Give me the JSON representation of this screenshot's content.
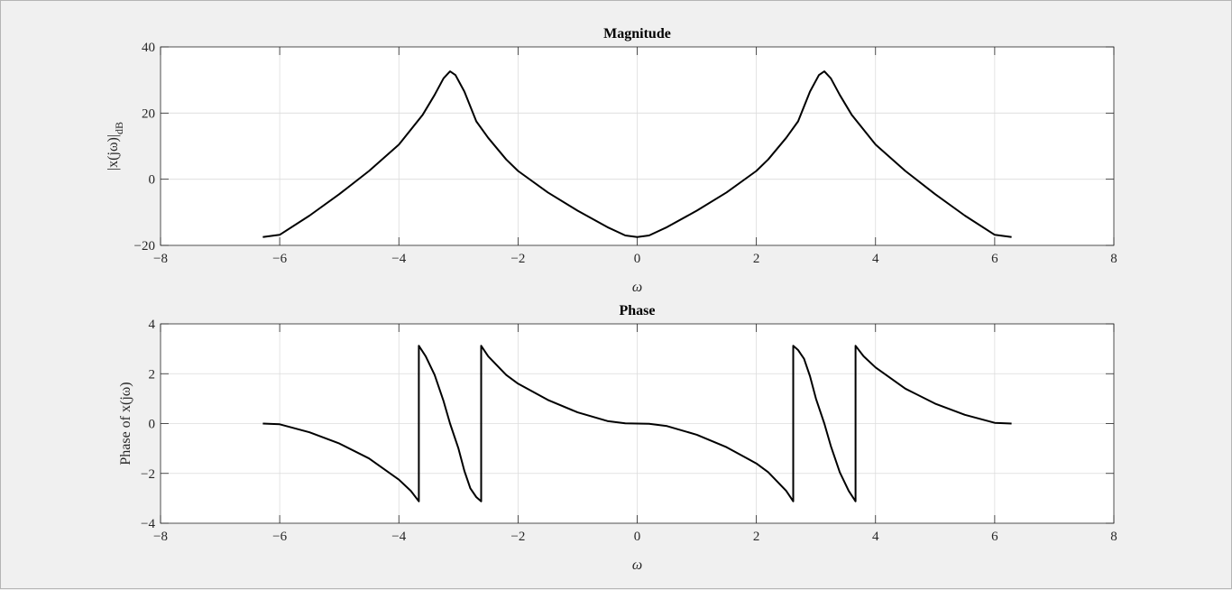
{
  "chart_data": [
    {
      "type": "line",
      "title": "Magnitude",
      "xlabel": "ω",
      "ylabel": "|x(jω)|dB",
      "xlim": [
        -8,
        8
      ],
      "ylim": [
        -20,
        40
      ],
      "xticks": [
        -8,
        -6,
        -4,
        -2,
        0,
        2,
        4,
        6,
        8
      ],
      "yticks": [
        -20,
        0,
        20,
        40
      ],
      "grid": true,
      "line_color": "#000000",
      "x": [
        -6.283,
        -6.0,
        -5.5,
        -5.0,
        -4.5,
        -4.0,
        -3.6,
        -3.4,
        -3.25,
        -3.1416,
        -3.05,
        -2.9,
        -2.7,
        -2.5,
        -2.2,
        -2.0,
        -1.5,
        -1.0,
        -0.5,
        -0.2,
        0,
        0.2,
        0.5,
        1.0,
        1.5,
        2.0,
        2.2,
        2.5,
        2.7,
        2.9,
        3.05,
        3.1416,
        3.25,
        3.4,
        3.6,
        4.0,
        4.5,
        5.0,
        5.5,
        6.0,
        6.283
      ],
      "y": [
        -17.5,
        -16.8,
        -11.0,
        -4.5,
        2.5,
        10.5,
        19.5,
        25.5,
        30.5,
        32.6,
        31.5,
        26.5,
        17.5,
        12.5,
        6.0,
        2.5,
        -4.0,
        -9.5,
        -14.5,
        -17.0,
        -17.5,
        -17.0,
        -14.5,
        -9.5,
        -4.0,
        2.5,
        6.0,
        12.5,
        17.5,
        26.5,
        31.5,
        32.6,
        30.5,
        25.5,
        19.5,
        10.5,
        2.5,
        -4.5,
        -11.0,
        -16.8,
        -17.5
      ]
    },
    {
      "type": "line",
      "title": "Phase",
      "xlabel": "ω",
      "ylabel": "Phase of x(jω)",
      "xlim": [
        -8,
        8
      ],
      "ylim": [
        -4,
        4
      ],
      "xticks": [
        -8,
        -6,
        -4,
        -2,
        0,
        2,
        4,
        6,
        8
      ],
      "yticks": [
        -4,
        -2,
        0,
        2,
        4
      ],
      "grid": true,
      "line_color": "#000000",
      "x": [
        -6.283,
        -6.0,
        -5.5,
        -5.0,
        -4.5,
        -4.0,
        -3.8,
        -3.665,
        -3.665,
        -3.55,
        -3.4,
        -3.25,
        -3.1416,
        -3.0,
        -2.9,
        -2.8,
        -2.7,
        -2.618,
        -2.618,
        -2.5,
        -2.2,
        -2.0,
        -1.5,
        -1.0,
        -0.5,
        -0.2,
        0,
        0.2,
        0.5,
        1.0,
        1.5,
        2.0,
        2.2,
        2.5,
        2.618,
        2.618,
        2.7,
        2.8,
        2.9,
        3.0,
        3.1416,
        3.25,
        3.4,
        3.55,
        3.665,
        3.665,
        3.8,
        4.0,
        4.5,
        5.0,
        5.5,
        6.0,
        6.283
      ],
      "y": [
        0.0,
        -0.03,
        -0.35,
        -0.8,
        -1.4,
        -2.25,
        -2.7,
        -3.12,
        3.12,
        2.7,
        1.95,
        0.9,
        0.0,
        -1.0,
        -1.9,
        -2.6,
        -2.95,
        -3.12,
        3.12,
        2.7,
        1.95,
        1.6,
        0.95,
        0.45,
        0.1,
        0.01,
        0.0,
        -0.01,
        -0.1,
        -0.45,
        -0.95,
        -1.6,
        -1.95,
        -2.7,
        -3.12,
        3.12,
        2.95,
        2.6,
        1.9,
        1.0,
        0.0,
        -0.9,
        -1.95,
        -2.7,
        -3.12,
        3.12,
        2.7,
        2.25,
        1.4,
        0.8,
        0.35,
        0.03,
        0.0
      ]
    }
  ]
}
